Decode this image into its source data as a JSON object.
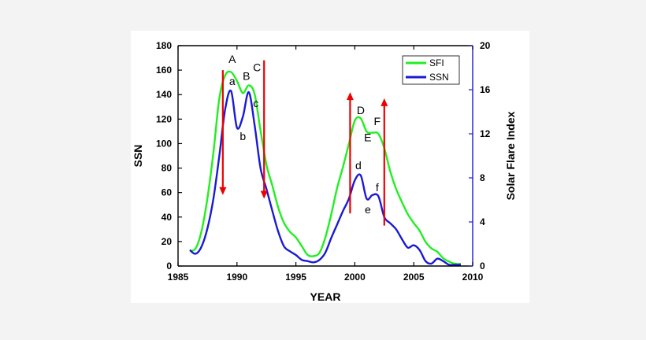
{
  "chart_data": {
    "type": "line",
    "xlabel": "YEAR",
    "ylabel": "SSN",
    "y2label": "Solar Flare Index",
    "xlim": [
      1985,
      2010
    ],
    "ylim": [
      0,
      180
    ],
    "y2lim": [
      0,
      20
    ],
    "xticks": [
      1985,
      1990,
      1995,
      2000,
      2005,
      2010
    ],
    "yticks": [
      0,
      20,
      40,
      60,
      80,
      100,
      120,
      140,
      160,
      180
    ],
    "y2ticks": [
      0,
      4,
      8,
      12,
      16,
      20
    ],
    "grid": false,
    "legend_position": "top-right",
    "series": [
      {
        "name": "SFI",
        "color": "#22ee22",
        "axis": "right",
        "x": [
          1986,
          1986.5,
          1987,
          1987.5,
          1988,
          1988.5,
          1989,
          1989.5,
          1990,
          1990.5,
          1991,
          1991.5,
          1992,
          1992.5,
          1993,
          1993.5,
          1994,
          1994.5,
          1995,
          1995.5,
          1996,
          1996.5,
          1997,
          1997.5,
          1998,
          1998.5,
          1999,
          1999.5,
          2000,
          2000.5,
          2001,
          2001.5,
          2002,
          2002.5,
          2003,
          2003.5,
          2004,
          2004.5,
          2005,
          2005.5,
          2006,
          2006.5,
          2007,
          2007.5,
          2008,
          2008.5,
          2009
        ],
        "values": [
          1.4,
          1.6,
          3.2,
          6.2,
          10.3,
          15.2,
          17.3,
          17.6,
          16.8,
          15.7,
          16.4,
          15.6,
          12.3,
          9.2,
          7.3,
          5.3,
          3.9,
          3.1,
          2.6,
          1.8,
          1.0,
          0.9,
          1.2,
          2.6,
          4.7,
          7.1,
          9.0,
          11.1,
          13.2,
          13.4,
          12.2,
          12.1,
          12.0,
          10.7,
          8.6,
          7.0,
          5.8,
          4.7,
          3.9,
          3.2,
          2.2,
          1.6,
          1.3,
          0.7,
          0.4,
          0.2,
          0.2
        ]
      },
      {
        "name": "SSN",
        "color": "#1a1ad6",
        "axis": "left",
        "x": [
          1986,
          1986.5,
          1987,
          1987.5,
          1988,
          1988.5,
          1989,
          1989.5,
          1990,
          1990.5,
          1991,
          1991.5,
          1992,
          1992.5,
          1993,
          1993.5,
          1994,
          1994.5,
          1995,
          1995.5,
          1996,
          1996.5,
          1997,
          1997.5,
          1998,
          1998.5,
          1999,
          1999.5,
          2000,
          2000.5,
          2001,
          2001.5,
          2002,
          2002.5,
          2003,
          2003.5,
          2004,
          2004.5,
          2005,
          2005.5,
          2006,
          2006.5,
          2007,
          2007.5,
          2008,
          2008.5,
          2009
        ],
        "values": [
          13,
          10,
          16,
          31,
          55,
          90,
          128,
          143,
          113,
          122,
          142,
          115,
          80,
          63,
          45,
          28,
          16,
          12,
          9,
          5,
          4,
          3,
          5,
          11,
          23,
          34,
          45,
          55,
          70,
          74,
          55,
          58,
          57,
          40,
          35,
          30,
          22,
          15,
          17,
          13,
          4,
          2,
          6,
          4,
          1,
          1,
          1
        ]
      }
    ],
    "annotations": [
      {
        "text": "A",
        "x": 1989.6,
        "y": 166
      },
      {
        "text": "a",
        "x": 1989.6,
        "y": 148
      },
      {
        "text": "b",
        "x": 1990.5,
        "y": 103
      },
      {
        "text": "B",
        "x": 1990.8,
        "y": 152
      },
      {
        "text": "C",
        "x": 1991.7,
        "y": 159
      },
      {
        "text": "c",
        "x": 1991.6,
        "y": 130
      },
      {
        "text": "D",
        "x": 2000.5,
        "y": 124
      },
      {
        "text": "E",
        "x": 2001.1,
        "y": 102
      },
      {
        "text": "F",
        "x": 2001.9,
        "y": 115
      },
      {
        "text": "d",
        "x": 2000.3,
        "y": 79
      },
      {
        "text": "e",
        "x": 2001.1,
        "y": 43
      },
      {
        "text": "f",
        "x": 2001.9,
        "y": 61
      }
    ],
    "arrows": [
      {
        "x": 1988.8,
        "from": 160,
        "to": 58,
        "color": "#ee0000"
      },
      {
        "x": 1992.3,
        "from": 168,
        "to": 55,
        "color": "#ee0000"
      },
      {
        "x": 1999.6,
        "from": 43,
        "to": 142,
        "color": "#ee0000"
      },
      {
        "x": 2002.5,
        "from": 33,
        "to": 137,
        "color": "#ee0000"
      }
    ]
  }
}
